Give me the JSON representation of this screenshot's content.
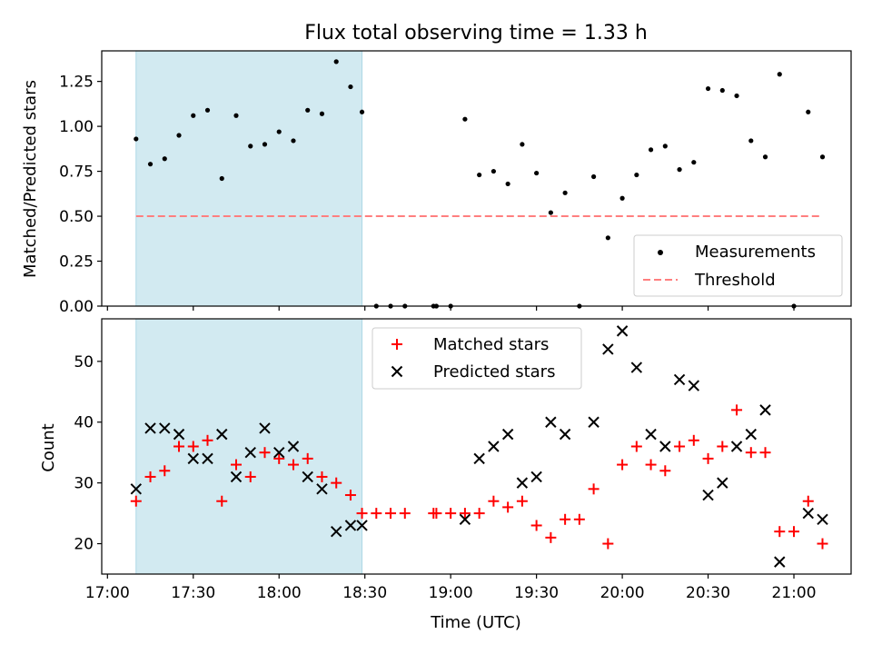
{
  "title": "Flux total observing time = 1.33 h",
  "colors": {
    "shade": "#add8e6",
    "threshold": "#ff7f7f",
    "measurement": "#000000",
    "matched": "#ff0000",
    "predicted": "#000000"
  },
  "chart_data": [
    {
      "type": "scatter",
      "ylabel": "Matched/Predicted stars",
      "ylim": [
        0,
        1.42
      ],
      "yticks": [
        "0.00",
        "0.25",
        "0.50",
        "0.75",
        "1.00",
        "1.25"
      ],
      "shaded_interval": [
        "17:10",
        "18:29"
      ],
      "threshold": {
        "label": "Threshold",
        "value": 0.5,
        "x_range": [
          "17:10",
          "21:10"
        ]
      },
      "legend": {
        "placement": "lower-right",
        "entries": [
          "Measurements",
          "Threshold"
        ]
      },
      "series": [
        {
          "name": "Measurements",
          "marker": "dot",
          "points": [
            [
              "17:10",
              0.93
            ],
            [
              "17:15",
              0.79
            ],
            [
              "17:20",
              0.82
            ],
            [
              "17:25",
              0.95
            ],
            [
              "17:30",
              1.06
            ],
            [
              "17:35",
              1.09
            ],
            [
              "17:40",
              0.71
            ],
            [
              "17:45",
              1.06
            ],
            [
              "17:50",
              0.89
            ],
            [
              "17:55",
              0.9
            ],
            [
              "18:00",
              0.97
            ],
            [
              "18:05",
              0.92
            ],
            [
              "18:10",
              1.09
            ],
            [
              "18:15",
              1.07
            ],
            [
              "18:20",
              1.36
            ],
            [
              "18:25",
              1.22
            ],
            [
              "18:29",
              1.08
            ],
            [
              "18:34",
              0.0
            ],
            [
              "18:39",
              0.0
            ],
            [
              "18:44",
              0.0
            ],
            [
              "18:54",
              0.0
            ],
            [
              "18:55",
              0.0
            ],
            [
              "19:00",
              0.0
            ],
            [
              "19:05",
              1.04
            ],
            [
              "19:10",
              0.73
            ],
            [
              "19:15",
              0.75
            ],
            [
              "19:20",
              0.68
            ],
            [
              "19:25",
              0.9
            ],
            [
              "19:30",
              0.74
            ],
            [
              "19:35",
              0.52
            ],
            [
              "19:40",
              0.63
            ],
            [
              "19:45",
              0.0
            ],
            [
              "19:50",
              0.72
            ],
            [
              "19:55",
              0.38
            ],
            [
              "20:00",
              0.6
            ],
            [
              "20:05",
              0.73
            ],
            [
              "20:10",
              0.87
            ],
            [
              "20:15",
              0.89
            ],
            [
              "20:20",
              0.76
            ],
            [
              "20:25",
              0.8
            ],
            [
              "20:30",
              1.21
            ],
            [
              "20:35",
              1.2
            ],
            [
              "20:40",
              1.17
            ],
            [
              "20:45",
              0.92
            ],
            [
              "20:50",
              0.83
            ],
            [
              "20:55",
              1.29
            ],
            [
              "21:00",
              0.0
            ],
            [
              "21:05",
              1.08
            ],
            [
              "21:10",
              0.83
            ]
          ]
        }
      ]
    },
    {
      "type": "scatter",
      "xlabel": "Time (UTC)",
      "ylabel": "Count",
      "ylim": [
        15,
        57
      ],
      "yticks": [
        "20",
        "30",
        "40",
        "50"
      ],
      "xticks": [
        "17:00",
        "17:30",
        "18:00",
        "18:30",
        "19:00",
        "19:30",
        "20:00",
        "20:30",
        "21:00"
      ],
      "xlim": [
        "16:58",
        "21:20"
      ],
      "shaded_interval": [
        "17:10",
        "18:29"
      ],
      "legend": {
        "placement": "top-center",
        "entries": [
          "Matched stars",
          "Predicted stars"
        ]
      },
      "series": [
        {
          "name": "Matched stars",
          "marker": "plus",
          "points": [
            [
              "17:10",
              27
            ],
            [
              "17:15",
              31
            ],
            [
              "17:20",
              32
            ],
            [
              "17:25",
              36
            ],
            [
              "17:30",
              36
            ],
            [
              "17:35",
              37
            ],
            [
              "17:40",
              27
            ],
            [
              "17:45",
              33
            ],
            [
              "17:50",
              31
            ],
            [
              "17:55",
              35
            ],
            [
              "18:00",
              34
            ],
            [
              "18:05",
              33
            ],
            [
              "18:10",
              34
            ],
            [
              "18:15",
              31
            ],
            [
              "18:20",
              30
            ],
            [
              "18:25",
              28
            ],
            [
              "18:29",
              25
            ],
            [
              "18:34",
              25
            ],
            [
              "18:39",
              25
            ],
            [
              "18:44",
              25
            ],
            [
              "18:54",
              25
            ],
            [
              "18:55",
              25
            ],
            [
              "19:00",
              25
            ],
            [
              "19:05",
              25
            ],
            [
              "19:10",
              25
            ],
            [
              "19:15",
              27
            ],
            [
              "19:20",
              26
            ],
            [
              "19:25",
              27
            ],
            [
              "19:30",
              23
            ],
            [
              "19:35",
              21
            ],
            [
              "19:40",
              24
            ],
            [
              "19:45",
              24
            ],
            [
              "19:50",
              29
            ],
            [
              "19:55",
              20
            ],
            [
              "20:00",
              33
            ],
            [
              "20:05",
              36
            ],
            [
              "20:10",
              33
            ],
            [
              "20:15",
              32
            ],
            [
              "20:20",
              36
            ],
            [
              "20:25",
              37
            ],
            [
              "20:30",
              34
            ],
            [
              "20:35",
              36
            ],
            [
              "20:40",
              42
            ],
            [
              "20:45",
              35
            ],
            [
              "20:50",
              35
            ],
            [
              "20:55",
              22
            ],
            [
              "21:00",
              22
            ],
            [
              "21:05",
              27
            ],
            [
              "21:10",
              20
            ]
          ]
        },
        {
          "name": "Predicted stars",
          "marker": "x",
          "points": [
            [
              "17:10",
              29
            ],
            [
              "17:15",
              39
            ],
            [
              "17:20",
              39
            ],
            [
              "17:25",
              38
            ],
            [
              "17:30",
              34
            ],
            [
              "17:35",
              34
            ],
            [
              "17:40",
              38
            ],
            [
              "17:45",
              31
            ],
            [
              "17:50",
              35
            ],
            [
              "17:55",
              39
            ],
            [
              "18:00",
              35
            ],
            [
              "18:05",
              36
            ],
            [
              "18:10",
              31
            ],
            [
              "18:15",
              29
            ],
            [
              "18:20",
              22
            ],
            [
              "18:25",
              23
            ],
            [
              "18:29",
              23
            ],
            [
              "19:05",
              24
            ],
            [
              "19:10",
              34
            ],
            [
              "19:15",
              36
            ],
            [
              "19:20",
              38
            ],
            [
              "19:25",
              30
            ],
            [
              "19:30",
              31
            ],
            [
              "19:35",
              40
            ],
            [
              "19:40",
              38
            ],
            [
              "19:50",
              40
            ],
            [
              "19:55",
              52
            ],
            [
              "20:00",
              55
            ],
            [
              "20:05",
              49
            ],
            [
              "20:10",
              38
            ],
            [
              "20:15",
              36
            ],
            [
              "20:20",
              47
            ],
            [
              "20:25",
              46
            ],
            [
              "20:30",
              28
            ],
            [
              "20:35",
              30
            ],
            [
              "20:40",
              36
            ],
            [
              "20:45",
              38
            ],
            [
              "20:50",
              42
            ],
            [
              "20:55",
              17
            ],
            [
              "21:05",
              25
            ],
            [
              "21:10",
              24
            ]
          ]
        }
      ]
    }
  ]
}
